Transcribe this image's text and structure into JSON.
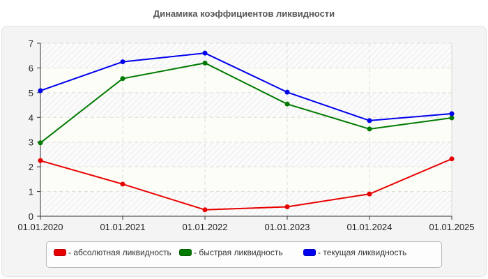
{
  "title": "Динамика коэффициентов ликвидности",
  "chart_data": {
    "type": "line",
    "title": "Динамика коэффициентов ликвидности",
    "categories": [
      "01.01.2020",
      "01.01.2021",
      "01.01.2022",
      "01.01.2023",
      "01.01.2024",
      "01.01.2025"
    ],
    "series": [
      {
        "name": "- абсолютная ликвидность",
        "color": "#e80000",
        "values": [
          2.25,
          1.3,
          0.26,
          0.38,
          0.9,
          2.32
        ]
      },
      {
        "name": "- быстрая ликвидность",
        "color": "#007a00",
        "values": [
          2.97,
          5.57,
          6.2,
          4.54,
          3.53,
          3.98
        ]
      },
      {
        "name": "- текущая ликвидность",
        "color": "#0000ee",
        "values": [
          5.08,
          6.25,
          6.6,
          5.02,
          3.87,
          4.15
        ]
      }
    ],
    "yticks": [
      "0",
      "1",
      "2",
      "3",
      "4",
      "5",
      "6",
      "7"
    ],
    "ylim": [
      0,
      7
    ],
    "xlabel": "",
    "ylabel": "",
    "grid": true,
    "legend_position": "bottom"
  }
}
